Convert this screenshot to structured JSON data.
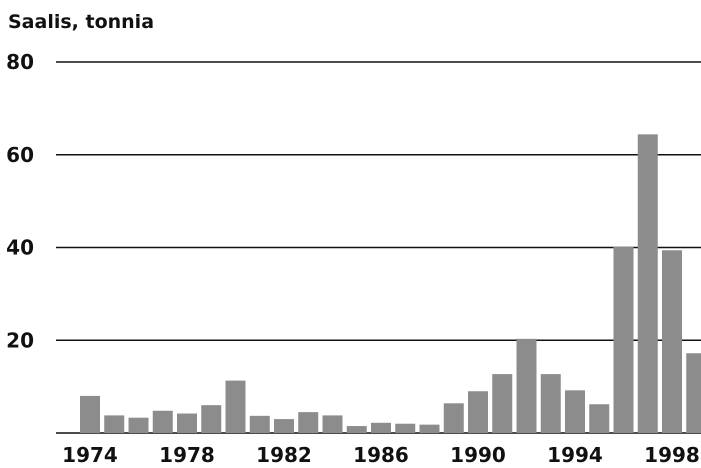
{
  "chart_data": {
    "type": "bar",
    "title": "",
    "ylabel": "Saalis, tonnia",
    "xlabel": "",
    "x": [
      1974,
      1975,
      1976,
      1977,
      1978,
      1979,
      1980,
      1981,
      1982,
      1983,
      1984,
      1985,
      1986,
      1987,
      1988,
      1989,
      1990,
      1991,
      1992,
      1993,
      1994,
      1995,
      1996,
      1997,
      1998,
      1999
    ],
    "values": [
      8,
      3.8,
      3.3,
      4.8,
      4.2,
      6,
      11.3,
      3.7,
      3,
      4.5,
      3.8,
      1.5,
      2.2,
      2,
      1.8,
      6.4,
      9,
      12.7,
      20.3,
      12.7,
      9.2,
      6.2,
      40.2,
      64.4,
      39.4,
      17.2
    ],
    "x_tick_labels": [
      "1974",
      "1978",
      "1982",
      "1986",
      "1990",
      "1994",
      "1998"
    ],
    "y_tick_labels": [
      "20",
      "40",
      "60",
      "80"
    ],
    "ylim": [
      0,
      80
    ],
    "grid": true,
    "legend": "none",
    "colors": {
      "bar": "#8c8c8c",
      "grid": "#111111",
      "text": "#111111"
    }
  }
}
